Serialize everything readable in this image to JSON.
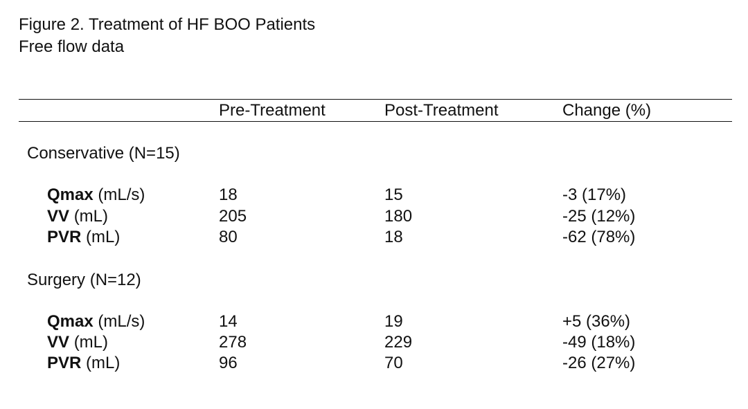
{
  "figure": {
    "title": "Figure 2. Treatment of HF BOO Patients",
    "subtitle": "Free flow data"
  },
  "table": {
    "headers": [
      "Pre-Treatment",
      "Post-Treatment",
      "Change (%)"
    ],
    "groups": [
      {
        "label": "Conservative (N=15)",
        "rows": [
          {
            "name": "Qmax",
            "unit": "(mL/s)",
            "pre": "18",
            "post": "15",
            "change": "-3 (17%)"
          },
          {
            "name": "VV",
            "unit": "(mL)",
            "pre": "205",
            "post": "180",
            "change": "-25 (12%)"
          },
          {
            "name": "PVR",
            "unit": "(mL)",
            "pre": "80",
            "post": "18",
            "change": "-62 (78%)"
          }
        ]
      },
      {
        "label": "Surgery (N=12)",
        "rows": [
          {
            "name": "Qmax",
            "unit": "(mL/s)",
            "pre": "14",
            "post": "19",
            "change": "+5 (36%)"
          },
          {
            "name": "VV",
            "unit": "(mL)",
            "pre": "278",
            "post": "229",
            "change": "-49 (18%)"
          },
          {
            "name": "PVR",
            "unit": "(mL)",
            "pre": "96",
            "post": "70",
            "change": "-26 (27%)"
          }
        ]
      }
    ]
  }
}
